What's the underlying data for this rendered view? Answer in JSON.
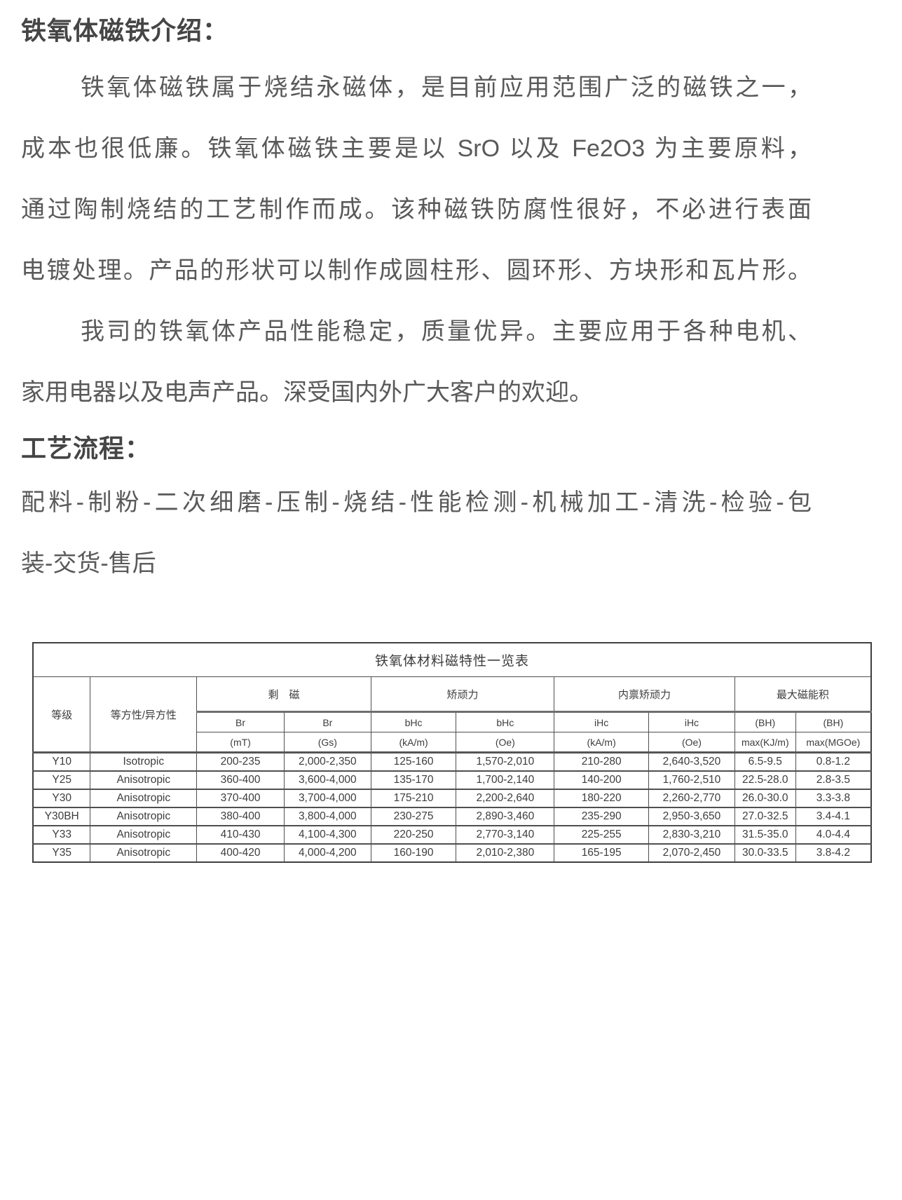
{
  "document": {
    "intro": {
      "heading": "铁氧体磁铁介绍：",
      "para1_lines": [
        "铁氧体磁铁属于烧结永磁体，是目前应用范围广泛的磁铁之一，",
        "成本也很低廉。铁氧体磁铁主要是以 SrO 以及 Fe2O3 为主要原料，",
        "通过陶制烧结的工艺制作而成。该种磁铁防腐性很好，不必进行表面",
        "电镀处理。产品的形状可以制作成圆柱形、圆环形、方块形和瓦片形。"
      ],
      "para2_lines": [
        "我司的铁氧体产品性能稳定，质量优异。主要应用于各种电机、",
        "家用电器以及电声产品。深受国内外广大客户的欢迎。"
      ]
    },
    "process": {
      "heading": "工艺流程：",
      "lines": [
        "配料-制粉-二次细磨-压制-烧结-性能检测-机械加工-清洗-检验-包",
        "装-交货-售后"
      ]
    }
  },
  "table": {
    "title": "铁氧体材料磁特性一览表",
    "head": {
      "grade": "等级",
      "isotropy": "等方性/异方性",
      "groups": [
        {
          "label": "剩　磁",
          "sub": [
            "Br",
            "Br"
          ],
          "units": [
            "(mT)",
            "(Gs)"
          ]
        },
        {
          "label": "矫顽力",
          "sub": [
            "bHc",
            "bHc"
          ],
          "units": [
            "(kA/m)",
            "(Oe)"
          ]
        },
        {
          "label": "内禀矫顽力",
          "sub": [
            "iHc",
            "iHc"
          ],
          "units": [
            "(kA/m)",
            "(Oe)"
          ]
        },
        {
          "label": "最大磁能积",
          "sub": [
            "(BH)",
            "(BH)"
          ],
          "units": [
            "max(KJ/m)",
            "max(MGOe)"
          ]
        }
      ]
    },
    "rows": [
      [
        "Y10",
        "Isotropic",
        "200-235",
        "2,000-2,350",
        "125-160",
        "1,570-2,010",
        "210-280",
        "2,640-3,520",
        "6.5-9.5",
        "0.8-1.2"
      ],
      [
        "Y25",
        "Anisotropic",
        "360-400",
        "3,600-4,000",
        "135-170",
        "1,700-2,140",
        "140-200",
        "1,760-2,510",
        "22.5-28.0",
        "2.8-3.5"
      ],
      [
        "Y30",
        "Anisotropic",
        "370-400",
        "3,700-4,000",
        "175-210",
        "2,200-2,640",
        "180-220",
        "2,260-2,770",
        "26.0-30.0",
        "3.3-3.8"
      ],
      [
        "Y30BH",
        "Anisotropic",
        "380-400",
        "3,800-4,000",
        "230-275",
        "2,890-3,460",
        "235-290",
        "2,950-3,650",
        "27.0-32.5",
        "3.4-4.1"
      ],
      [
        "Y33",
        "Anisotropic",
        "410-430",
        "4,100-4,300",
        "220-250",
        "2,770-3,140",
        "225-255",
        "2,830-3,210",
        "31.5-35.0",
        "4.0-4.4"
      ],
      [
        "Y35",
        "Anisotropic",
        "400-420",
        "4,000-4,200",
        "160-190",
        "2,010-2,380",
        "165-195",
        "2,070-2,450",
        "30.0-33.5",
        "3.8-4.2"
      ]
    ]
  },
  "colors": {
    "body_text": "#595959",
    "heading_text": "#454545",
    "table_text": "#3d3d3d",
    "table_border": "#4f4f4f"
  }
}
